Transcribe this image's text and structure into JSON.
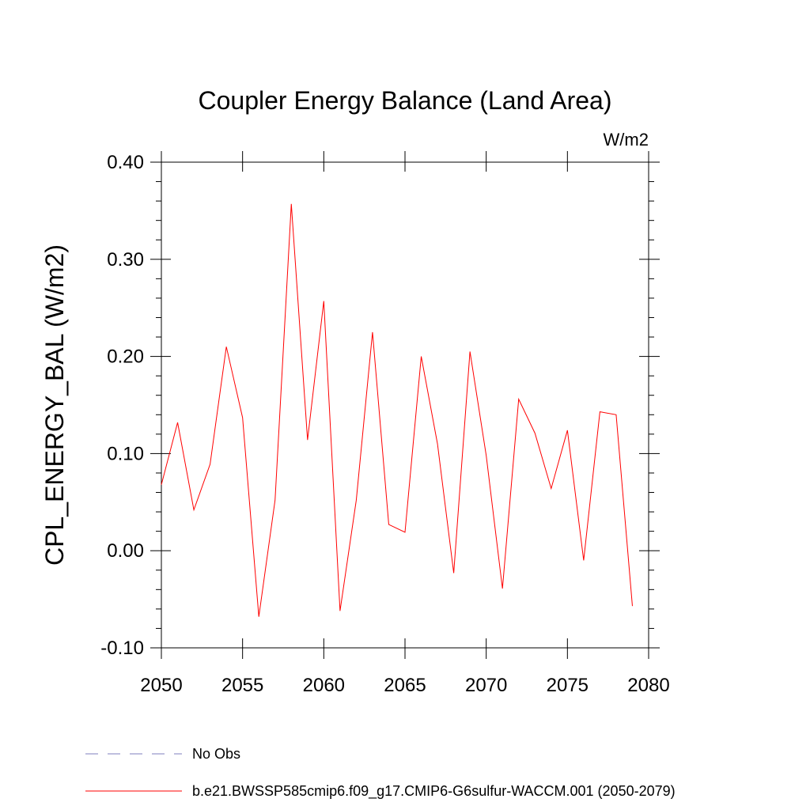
{
  "chart_data": {
    "type": "line",
    "title": "Coupler Energy Balance (Land Area)",
    "units": "W/m2",
    "xlabel": "",
    "ylabel": "CPL_ENERGY_BAL  (W/m2)",
    "xlim": [
      2050,
      2080
    ],
    "ylim": [
      -0.1,
      0.4
    ],
    "x_ticks": [
      2050,
      2055,
      2060,
      2065,
      2070,
      2075,
      2080
    ],
    "x_tick_labels": [
      "2050",
      "2055",
      "2060",
      "2065",
      "2070",
      "2075",
      "2080"
    ],
    "y_ticks": [
      -0.1,
      0.0,
      0.1,
      0.2,
      0.3,
      0.4
    ],
    "y_tick_labels": [
      "-0.10",
      "0.00",
      "0.10",
      "0.20",
      "0.30",
      "0.40"
    ],
    "grid": false,
    "legend_position": "bottom",
    "x": [
      2050,
      2051,
      2052,
      2053,
      2054,
      2055,
      2056,
      2057,
      2058,
      2059,
      2060,
      2061,
      2062,
      2063,
      2064,
      2065,
      2066,
      2067,
      2068,
      2069,
      2070,
      2071,
      2072,
      2073,
      2074,
      2075,
      2076,
      2077,
      2078,
      2079
    ],
    "series": [
      {
        "name": "b.e21.BWSSP585cmip6.f09_g17.CMIP6-G6sulfur-WACCM.001 (2050-2079)",
        "color": "#ff0000",
        "style": "solid",
        "values": [
          0.068,
          0.132,
          0.042,
          0.089,
          0.21,
          0.137,
          -0.068,
          0.052,
          0.357,
          0.114,
          0.257,
          -0.062,
          0.052,
          0.225,
          0.027,
          0.019,
          0.2,
          0.11,
          -0.023,
          0.205,
          0.098,
          -0.039,
          0.156,
          0.121,
          0.064,
          0.124,
          -0.01,
          0.143,
          0.14,
          -0.057
        ]
      }
    ],
    "legend": [
      {
        "label": "No Obs",
        "color": "#7f7fbf",
        "style": "dashed"
      },
      {
        "label": "b.e21.BWSSP585cmip6.f09_g17.CMIP6-G6sulfur-WACCM.001 (2050-2079)",
        "color": "#ff0000",
        "style": "solid"
      }
    ]
  }
}
